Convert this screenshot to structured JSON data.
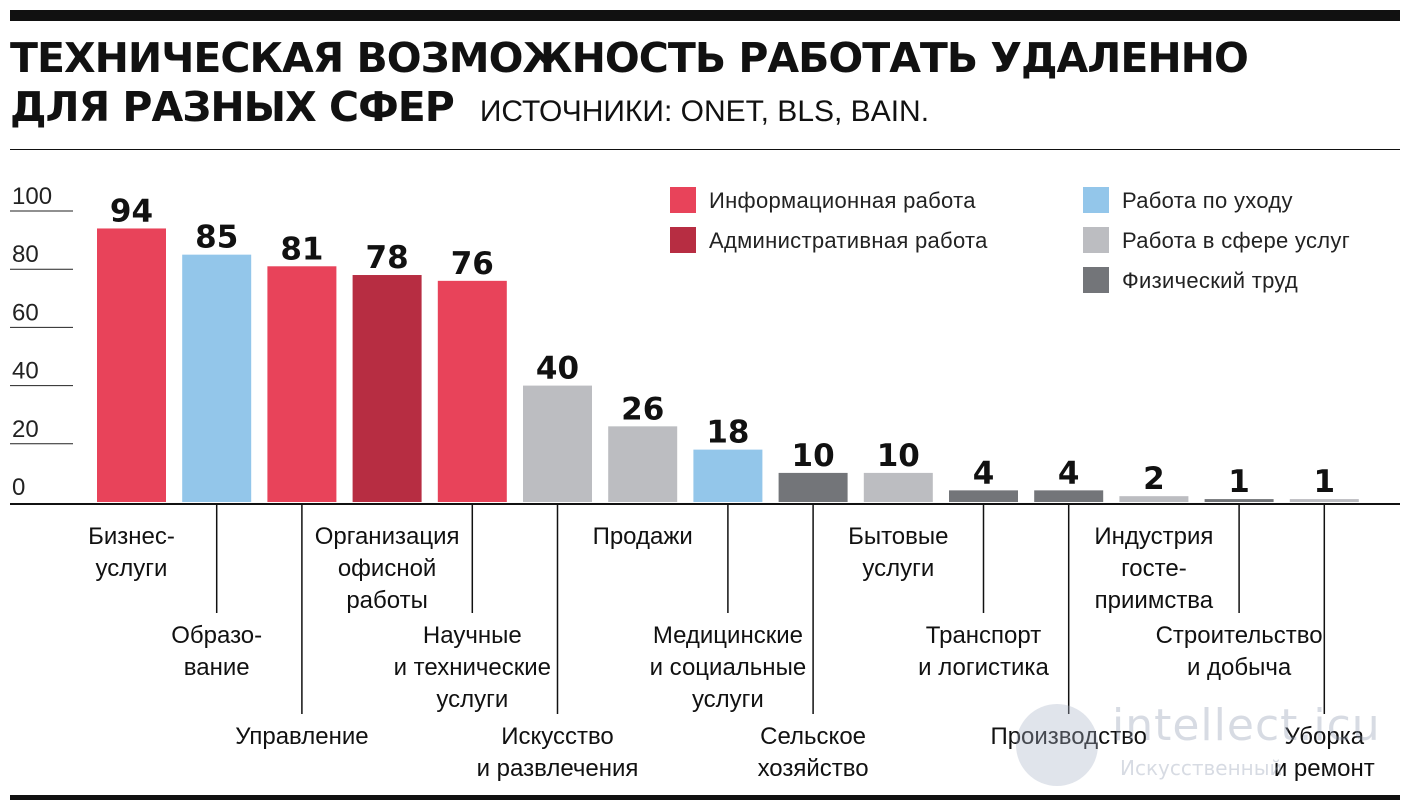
{
  "title": {
    "line1": "Техническая возможность работать удаленно",
    "line2": "для разных сфер",
    "source": "ИСТОЧНИКИ: ONET, BLS, BAIN."
  },
  "watermark": {
    "main": "intellect.icu",
    "sub": "Искусственный"
  },
  "colors": {
    "info": "#e8435a",
    "admin": "#b72d42",
    "care": "#93c6ea",
    "service": "#bcbdc1",
    "physical": "#737579"
  },
  "chart_data": {
    "type": "bar",
    "title": "Техническая возможность работать удаленно для разных сфер",
    "ylim": [
      0,
      100
    ],
    "yticks": [
      0,
      20,
      40,
      60,
      80,
      100
    ],
    "grid": true,
    "legend_position": "top-right",
    "legend": [
      {
        "key": "info",
        "label": "Информационная работа"
      },
      {
        "key": "admin",
        "label": "Административная работа"
      },
      {
        "key": "care",
        "label": "Работа по уходу"
      },
      {
        "key": "service",
        "label": "Работа в сфере услуг"
      },
      {
        "key": "physical",
        "label": "Физический труд"
      }
    ],
    "categories": [
      {
        "label": [
          "Бизнес-",
          "услуги"
        ],
        "value": 94,
        "group": "info"
      },
      {
        "label": [
          "Образо-",
          "вание"
        ],
        "value": 85,
        "group": "care"
      },
      {
        "label": [
          "Управление"
        ],
        "value": 81,
        "group": "info"
      },
      {
        "label": [
          "Организация",
          "офисной",
          "работы"
        ],
        "value": 78,
        "group": "admin"
      },
      {
        "label": [
          "Научные",
          "и технические",
          "услуги"
        ],
        "value": 76,
        "group": "info"
      },
      {
        "label": [
          "Искусство",
          "и развлечения"
        ],
        "value": 40,
        "group": "service"
      },
      {
        "label": [
          "Продажи"
        ],
        "value": 26,
        "group": "service"
      },
      {
        "label": [
          "Медицинские",
          "и социальные",
          "услуги"
        ],
        "value": 18,
        "group": "care"
      },
      {
        "label": [
          "Сельское",
          "хозяйство"
        ],
        "value": 10,
        "group": "physical"
      },
      {
        "label": [
          "Бытовые",
          "услуги"
        ],
        "value": 10,
        "group": "service"
      },
      {
        "label": [
          "Транспорт",
          "и логистика"
        ],
        "value": 4,
        "group": "physical"
      },
      {
        "label": [
          "Производство"
        ],
        "value": 4,
        "group": "physical"
      },
      {
        "label": [
          "Индустрия",
          "госте-",
          "приимства"
        ],
        "value": 2,
        "group": "service"
      },
      {
        "label": [
          "Строительство",
          "и добыча"
        ],
        "value": 1,
        "group": "physical"
      },
      {
        "label": [
          "Уборка",
          "и ремонт"
        ],
        "value": 1,
        "group": "service"
      }
    ]
  }
}
